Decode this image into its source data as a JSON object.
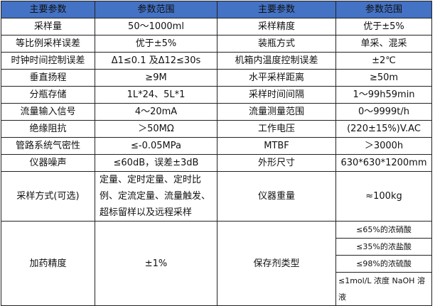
{
  "header": [
    "主要参数",
    "参数范围",
    "主要参数",
    "参数范围"
  ],
  "rows": [
    [
      "采样量",
      "50～1000ml",
      "采样精度",
      "优于±5%"
    ],
    [
      "等比例采样误差",
      "优于±5%",
      "装瓶方式",
      "单采、混采"
    ],
    [
      "时钟时间控制误差",
      "Δ1≤0.1 及Δ12≤30s",
      "机箱内温度控制误差",
      "±2℃"
    ],
    [
      "垂直扬程",
      "≥9M",
      "水平采样距离",
      "≥50m"
    ],
    [
      "分瓶存储",
      "1L*24、5L*1",
      "采样时间间隔",
      "1～99h59min"
    ],
    [
      "流量输入信号",
      "4～20mA",
      "流量测量范围",
      "0～9999t/h"
    ],
    [
      "绝缘阻抗",
      "＞50MΩ",
      "工作电压",
      "(220±15%)V.AC"
    ],
    [
      "管路系统气密性",
      "≤-0.05MPa",
      "MTBF",
      "＞3000h"
    ],
    [
      "仪器噪声",
      "≤60dB，误差±3dB",
      "外形尺寸",
      "630*630*1200mm"
    ],
    [
      "采样方式(可选)",
      "定量、定时定量、定时比例、定流定量、流量触发、超标留样以及远程采样",
      "仪器重量",
      "≈100kg"
    ]
  ],
  "last": {
    "c1": "加药精度",
    "c2": "±1%",
    "c3": "保存剂类型",
    "c4": [
      "≤65%的浓硝酸",
      "≤35%的浓盐酸",
      "≤98%的浓硫酸",
      "≤1mol/L 浓度 NaOH 溶液"
    ]
  },
  "colors": {
    "header_bg": "#4472C4"
  }
}
